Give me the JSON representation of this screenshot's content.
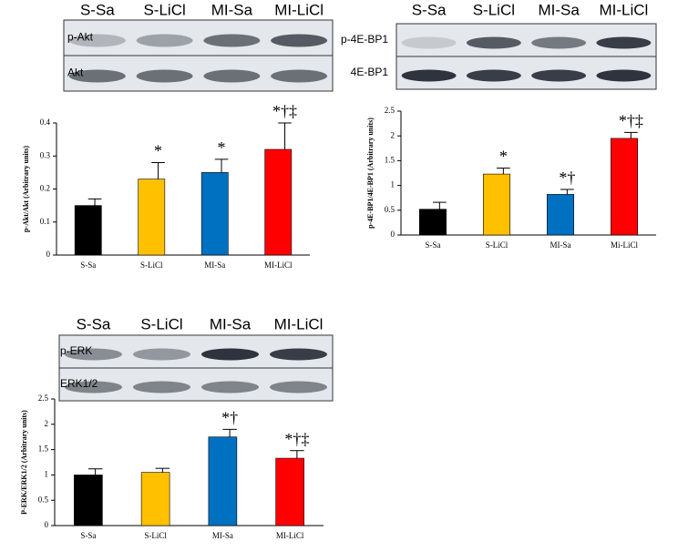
{
  "chart_data": [
    {
      "type": "bar",
      "blot": {
        "lanes": [
          "S-Sa",
          "S-LiCl",
          "MI-Sa",
          "MI-LiCl"
        ],
        "bands": [
          "p-Akt",
          "Akt"
        ]
      },
      "y_label": "p-Akt/Akt (Arbitrary units)",
      "categories": [
        "S-Sa",
        "S-LiCl",
        "MI-Sa",
        "MI-LiCl"
      ],
      "values": [
        0.15,
        0.23,
        0.25,
        0.32
      ],
      "errors": [
        0.02,
        0.05,
        0.04,
        0.08
      ],
      "annotations": [
        "",
        "*",
        "*",
        "*†‡"
      ],
      "colors": [
        "#000000",
        "#ffc000",
        "#0070c0",
        "#ff0000"
      ],
      "ylim": [
        0,
        0.4
      ],
      "yticks": [
        0,
        0.1,
        0.2,
        0.3,
        0.4
      ]
    },
    {
      "type": "bar",
      "blot": {
        "lanes": [
          "S-Sa",
          "S-LiCl",
          "MI-Sa",
          "MI-LiCl"
        ],
        "bands": [
          "p-4E-BP1",
          "4E-BP1"
        ]
      },
      "y_label": "p-4E-BP1/4E-BP1 (Arbitrary units)",
      "categories": [
        "S-Sa",
        "S-LiCl",
        "MI-Sa",
        "Mi-LiCl"
      ],
      "values": [
        0.52,
        1.23,
        0.82,
        1.95
      ],
      "errors": [
        0.14,
        0.12,
        0.1,
        0.12
      ],
      "annotations": [
        null,
        "*",
        "*†",
        "*†‡"
      ],
      "colors": [
        "#000000",
        "#ffc000",
        "#0070c0",
        "#ff0000"
      ],
      "ylim": [
        0,
        2.5
      ],
      "yticks": [
        0,
        0.5,
        1,
        1.5,
        2,
        2.5
      ]
    },
    {
      "type": "bar",
      "blot": {
        "lanes": [
          "S-Sa",
          "S-LiCl",
          "MI-Sa",
          "MI-LiCl"
        ],
        "bands": [
          "p-ERK",
          "ERK1/2"
        ]
      },
      "y_label": "P-ERK/ERK1/2 (Arbitrary units)",
      "categories": [
        "S-Sa",
        "S-LiCl",
        "MI-Sa",
        "MI-LiCl"
      ],
      "values": [
        1.0,
        1.05,
        1.75,
        1.33
      ],
      "errors": [
        0.12,
        0.08,
        0.15,
        0.15
      ],
      "annotations": [
        null,
        null,
        "*†",
        "*†‡"
      ],
      "colors": [
        "#000000",
        "#ffc000",
        "#0070c0",
        "#ff0000"
      ],
      "ylim": [
        0,
        2.5
      ],
      "yticks": [
        0,
        0.5,
        1,
        1.5,
        2,
        2.5
      ]
    }
  ]
}
